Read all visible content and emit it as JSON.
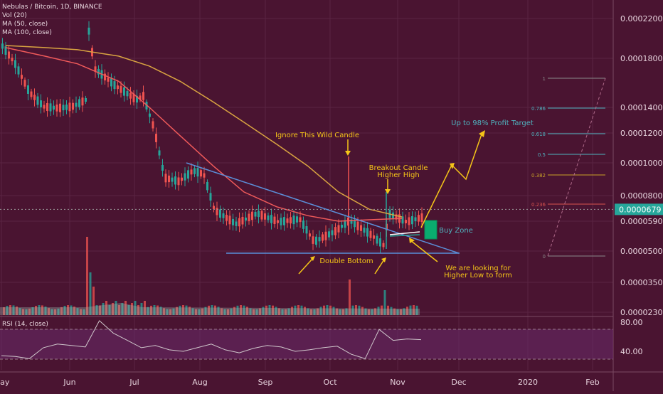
{
  "legend": {
    "symbol": "Nebulas / Bitcoin, 1D, BINANCE",
    "vol": "Vol (20)",
    "ma50": "MA (50, close)",
    "ma100": "MA (100, close)"
  },
  "rsi_panel": {
    "label": "RSI (14, close)"
  },
  "price_badge": "0.0000679",
  "annotations": {
    "wild_candle": "Ignore This Wild Candle",
    "breakout_1": "Breakout Candle",
    "breakout_2": "Higher High",
    "profit": "Up to 98% Profit Target",
    "buy_zone": "Buy Zone",
    "double_bottom": "Double Bottom",
    "higher_low_1": "We are looking for",
    "higher_low_2": "Higher Low to form"
  },
  "colors": {
    "background": "#4a1431",
    "up_candle": "#26a69a",
    "down_candle": "#ef5350",
    "ma50": "#f05a5a",
    "ma100": "#d9a441",
    "trendline": "#5b8fd9",
    "annotation": "#f5c518",
    "rsi_line": "#d0c8cc",
    "rsi_band": "#6a2a6a",
    "buy_zone": "#00c77a",
    "fib_grey": "#8a8a8a",
    "fib_cyan": "#4fb3bf",
    "fib_gold": "#c9a227",
    "fib_red": "#d9534f",
    "profit_text": "#4fb3bf"
  },
  "chart_data": {
    "type": "line",
    "x_ticks": [
      "May",
      "Jun",
      "Jul",
      "Aug",
      "Sep",
      "Oct",
      "Nov",
      "Dec",
      "2020",
      "Feb"
    ],
    "y_ticks": [
      "0.0002200",
      "0.0001800",
      "0.0001400",
      "0.0001200",
      "0.0001000",
      "0.0000800",
      "0.0000590",
      "0.0000500",
      "0.0000350",
      "0.0000230"
    ],
    "rsi_ticks": [
      "80.00",
      "40.00"
    ],
    "current_price": 6.79e-05,
    "price_x_months": [
      "May",
      "May",
      "May",
      "Jun",
      "Jun",
      "Jun",
      "Jun",
      "Jul",
      "Jul",
      "Jul",
      "Aug",
      "Aug",
      "Aug",
      "Sep",
      "Sep",
      "Sep",
      "Oct",
      "Oct",
      "Oct",
      "Nov",
      "Nov",
      "Nov"
    ],
    "series": [
      {
        "name": "MA (50, close)",
        "x": [
          "2019-05-01",
          "2019-05-20",
          "2019-06-05",
          "2019-06-25",
          "2019-07-10",
          "2019-07-25",
          "2019-08-10",
          "2019-08-25",
          "2019-09-10",
          "2019-09-25",
          "2019-10-10",
          "2019-10-25",
          "2019-11-10"
        ],
        "values": [
          0.00019,
          0.000182,
          0.000175,
          0.00016,
          0.00014,
          0.000118,
          9.8e-05,
          8.2e-05,
          7e-05,
          6.3e-05,
          5.9e-05,
          6e-05,
          6.1e-05
        ]
      },
      {
        "name": "MA (100, close)",
        "x": [
          "2019-05-01",
          "2019-05-20",
          "2019-06-05",
          "2019-06-25",
          "2019-07-10",
          "2019-07-25",
          "2019-08-10",
          "2019-08-25",
          "2019-09-10",
          "2019-09-25",
          "2019-10-10",
          "2019-10-25",
          "2019-11-10"
        ],
        "values": [
          0.000192,
          0.00019,
          0.000188,
          0.000182,
          0.000173,
          0.00016,
          0.000144,
          0.000128,
          0.000112,
          9.8e-05,
          8.2e-05,
          6.8e-05,
          6.2e-05
        ]
      }
    ],
    "rsi_values": [
      34,
      33,
      30,
      45,
      50,
      48,
      46,
      82,
      65,
      55,
      45,
      48,
      42,
      40,
      45,
      50,
      42,
      38,
      44,
      48,
      46,
      40,
      42,
      45,
      47,
      36,
      30,
      70,
      55,
      57,
      56
    ],
    "fib_levels": [
      {
        "label": "1",
        "value": 1
      },
      {
        "label": "0.786",
        "value": 0.786
      },
      {
        "label": "0.618",
        "value": 0.618
      },
      {
        "label": "0.5",
        "value": 0.5
      },
      {
        "label": "0.382",
        "value": 0.382
      },
      {
        "label": "0.236",
        "value": 0.236
      },
      {
        "label": "0",
        "value": 0
      }
    ],
    "grid": true
  }
}
